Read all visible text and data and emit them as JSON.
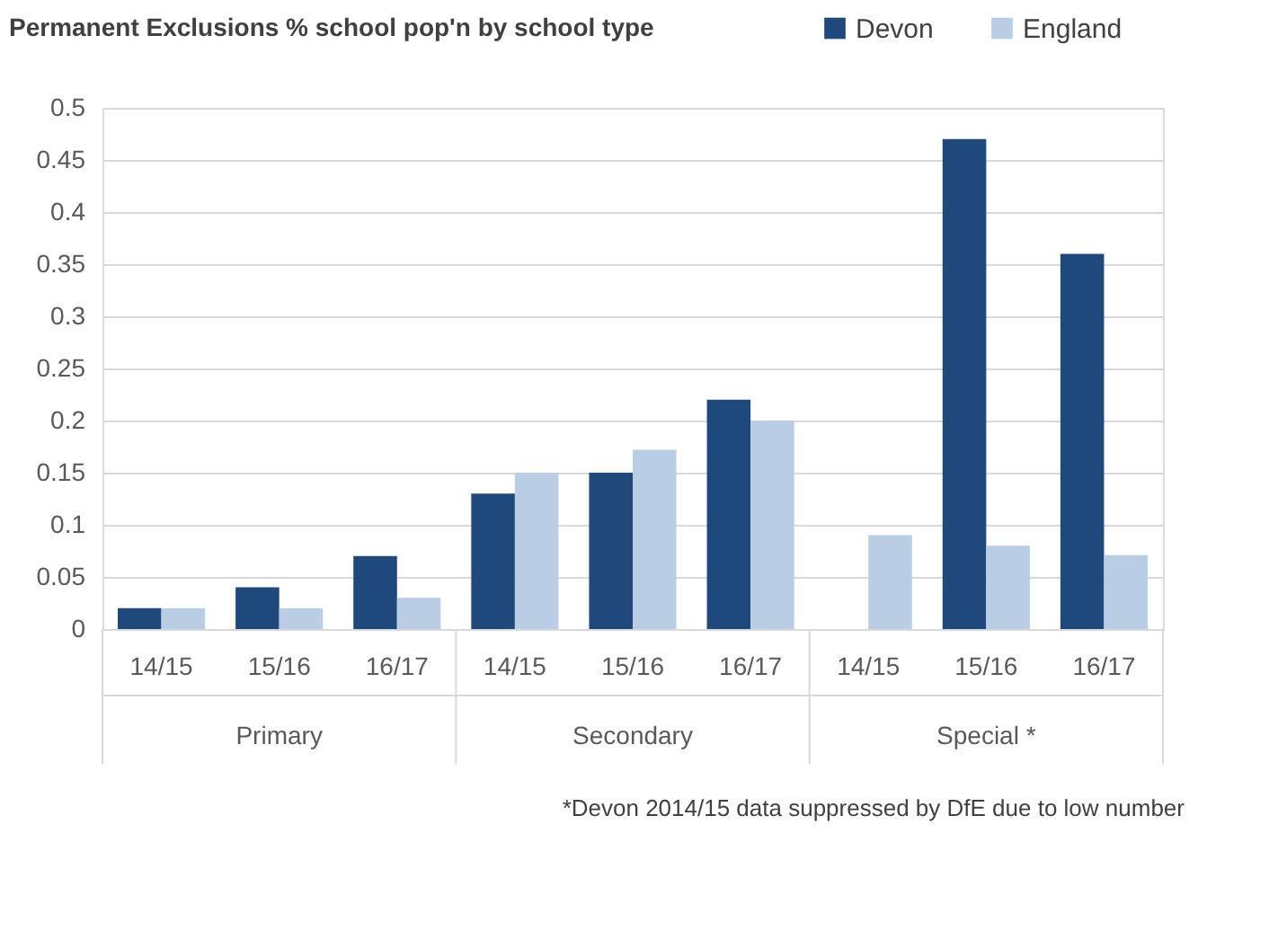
{
  "chart_data": {
    "type": "bar",
    "title": "Permanent Exclusions % school pop'n by school type",
    "categories": [
      "14/15",
      "15/16",
      "16/17",
      "14/15",
      "15/16",
      "16/17",
      "14/15",
      "15/16",
      "16/17"
    ],
    "series": [
      {
        "name": "Devon",
        "color": "#1f497d",
        "values": [
          0.02,
          0.04,
          0.07,
          0.13,
          0.15,
          0.22,
          null,
          0.47,
          0.36
        ]
      },
      {
        "name": "England",
        "color": "#b9cde5",
        "values": [
          0.02,
          0.02,
          0.03,
          0.15,
          0.172,
          0.2,
          0.09,
          0.08,
          0.071
        ]
      }
    ],
    "ylim": [
      0,
      0.5
    ],
    "yticks": [
      0,
      0.05,
      0.1,
      0.15,
      0.2,
      0.25,
      0.3,
      0.35,
      0.4,
      0.45,
      0.5
    ],
    "grid": "y",
    "legend": "top right",
    "annotations": [
      "Primary",
      "Secondary",
      "Special *",
      "*Devon 2014/15 data suppressed by DfE due to low number"
    ]
  }
}
